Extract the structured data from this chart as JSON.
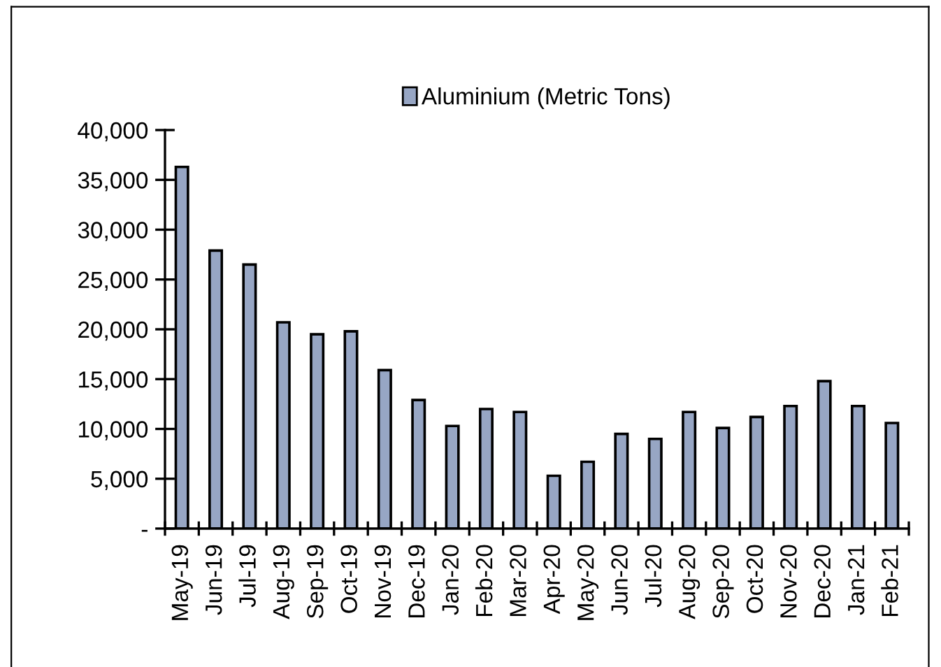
{
  "chart_data": {
    "type": "bar",
    "categories": [
      "May-19",
      "Jun-19",
      "Jul-19",
      "Aug-19",
      "Sep-19",
      "Oct-19",
      "Nov-19",
      "Dec-19",
      "Jan-20",
      "Feb-20",
      "Mar-20",
      "Apr-20",
      "May-20",
      "Jun-20",
      "Jul-20",
      "Aug-20",
      "Sep-20",
      "Oct-20",
      "Nov-20",
      "Dec-20",
      "Jan-21",
      "Feb-21"
    ],
    "series": [
      {
        "name": "Aluminium (Metric Tons)",
        "color": "#97a6c4",
        "values": [
          36300,
          27900,
          26500,
          20700,
          19500,
          19800,
          15900,
          12900,
          10300,
          12000,
          11700,
          5300,
          6700,
          9500,
          9000,
          11700,
          10100,
          11200,
          12300,
          14800,
          12300,
          10600
        ]
      }
    ],
    "ylim": [
      0,
      40000
    ],
    "yticks": [
      {
        "value": 0,
        "label": "-"
      },
      {
        "value": 5000,
        "label": "5,000"
      },
      {
        "value": 10000,
        "label": "10,000"
      },
      {
        "value": 15000,
        "label": "15,000"
      },
      {
        "value": 20000,
        "label": "20,000"
      },
      {
        "value": 25000,
        "label": "25,000"
      },
      {
        "value": 30000,
        "label": "30,000"
      },
      {
        "value": 35000,
        "label": "35,000"
      },
      {
        "value": 40000,
        "label": "40,000"
      }
    ],
    "grid": false,
    "legend": "top"
  }
}
